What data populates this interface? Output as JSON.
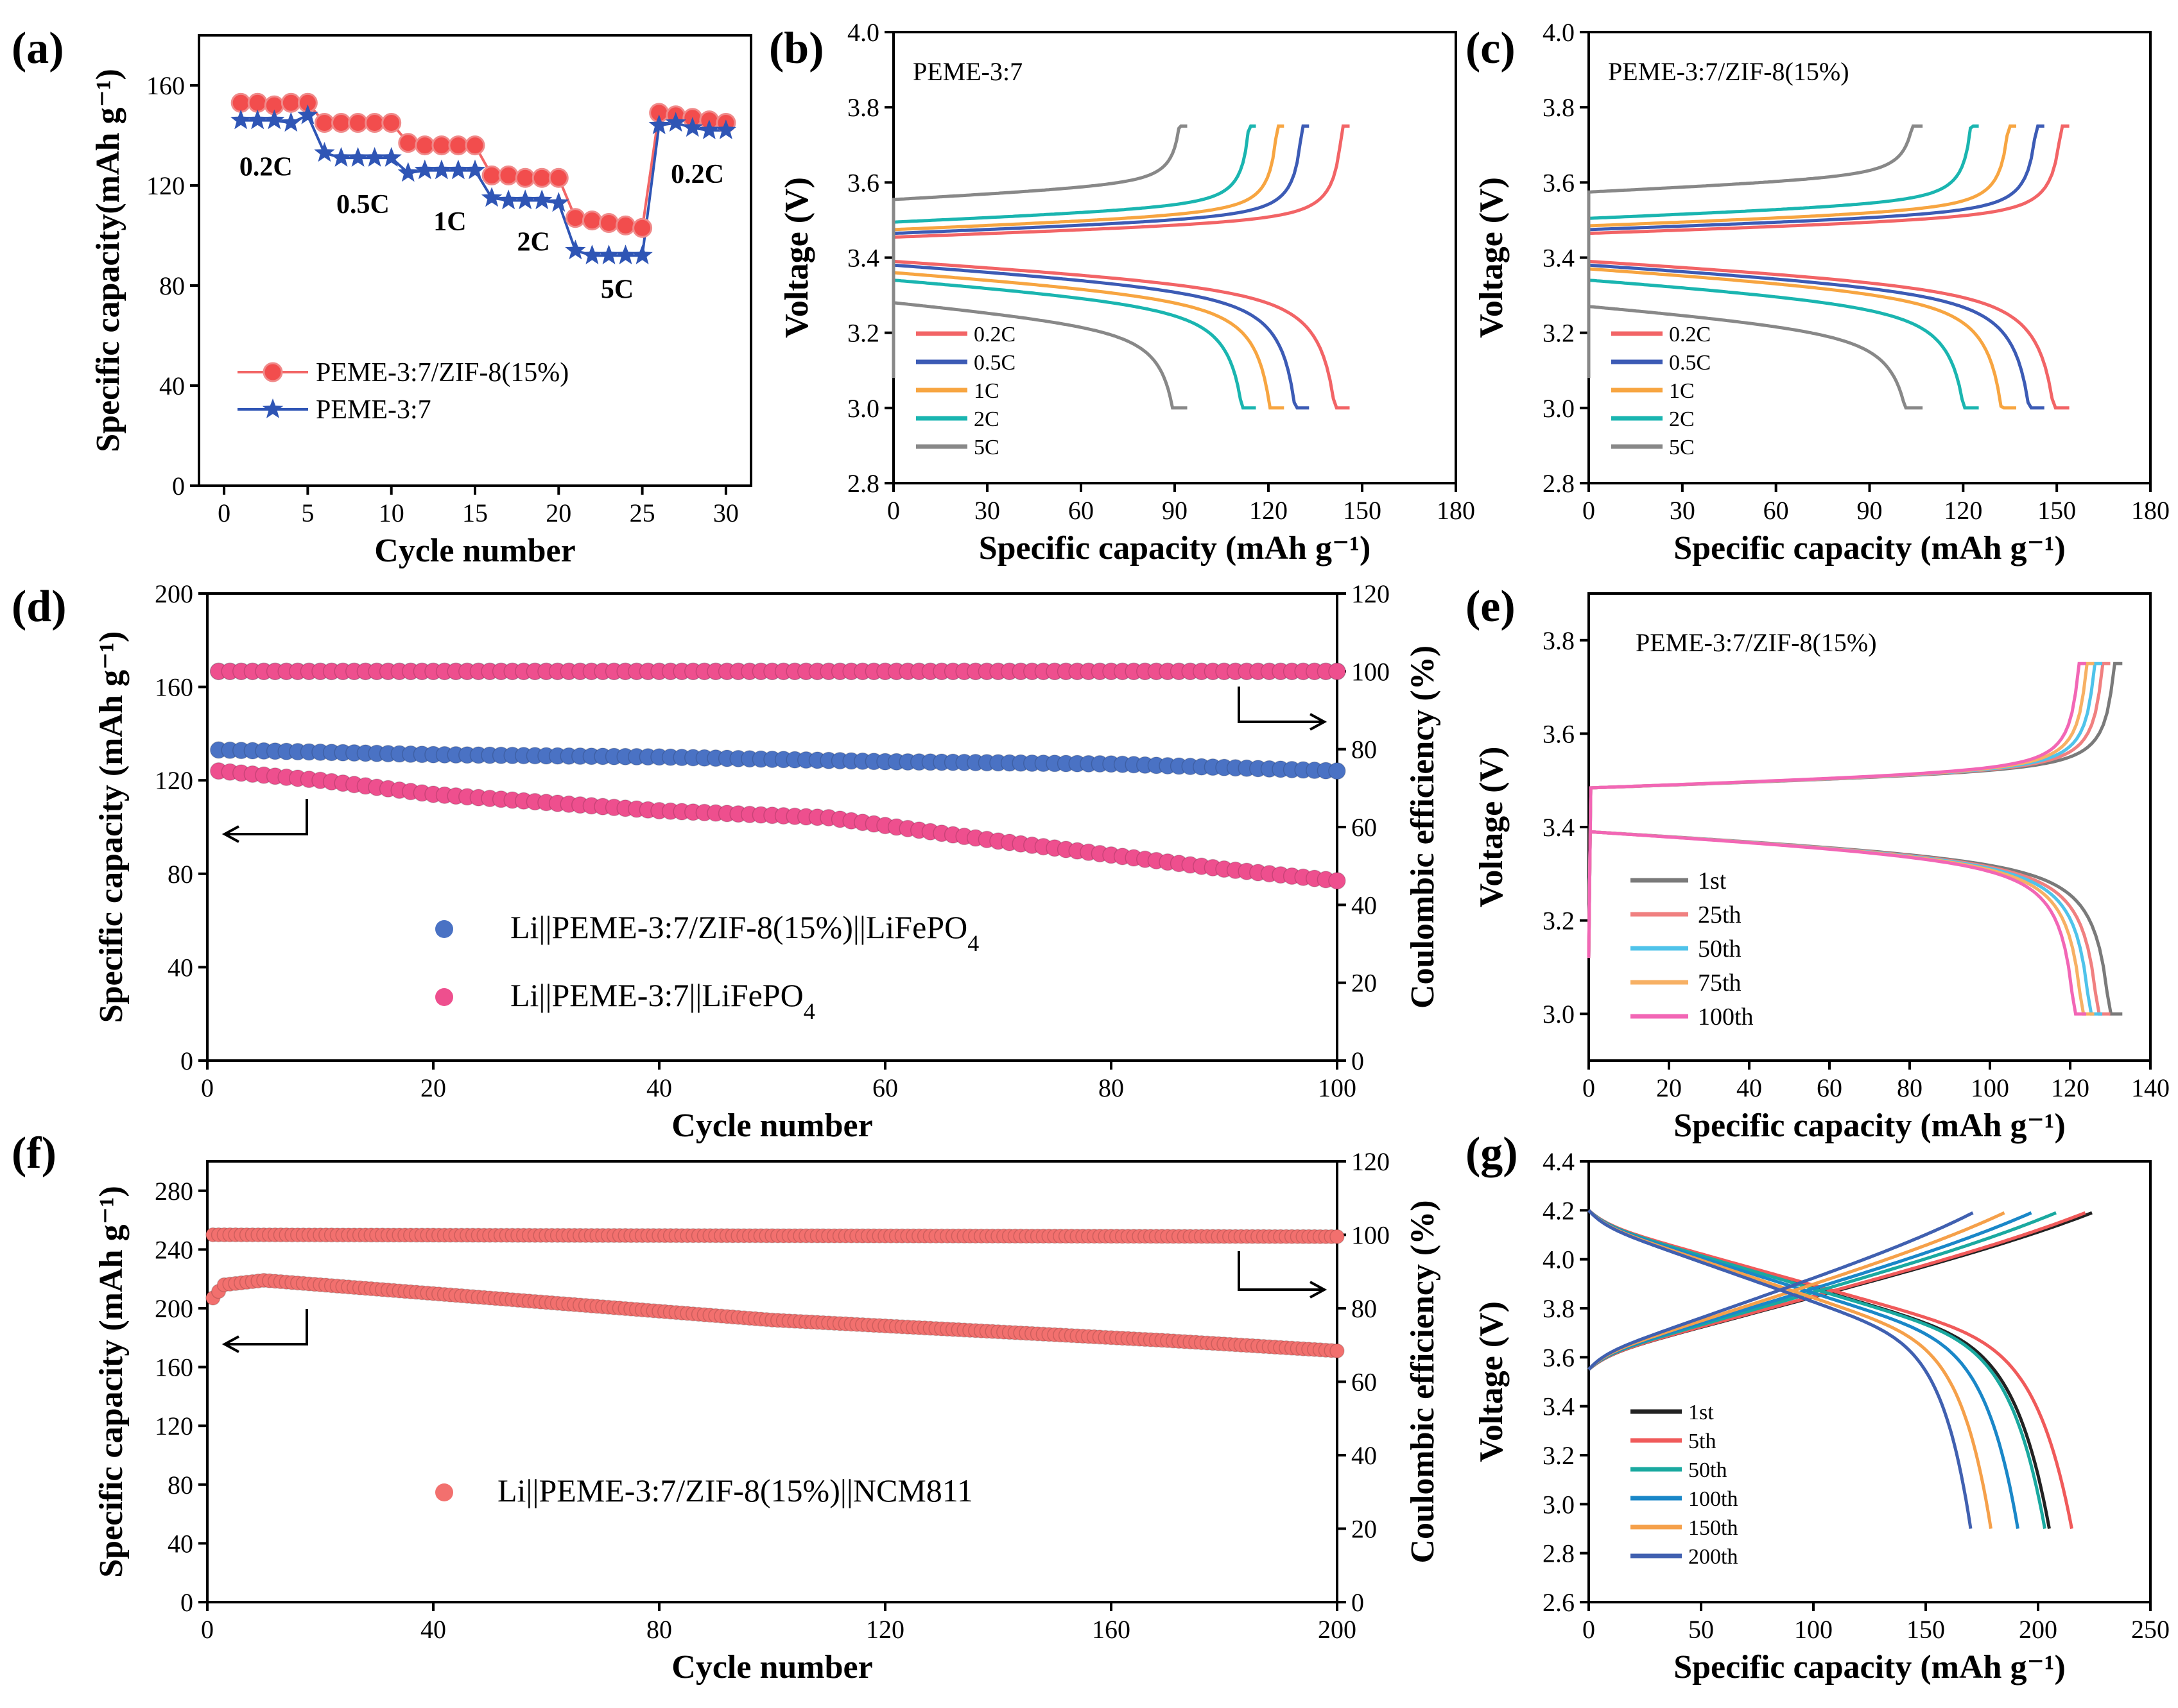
{
  "figure": {
    "panel_labels": [
      "(a)",
      "(b)",
      "(c)",
      "(d)",
      "(e)",
      "(f)",
      "(g)"
    ]
  },
  "chart_data": [
    {
      "id": "a",
      "type": "scatter",
      "xlabel": "Cycle number",
      "ylabel": "Specific capacity(mAh g⁻¹)",
      "xlim": [
        -1.5,
        31.5
      ],
      "ylim": [
        0,
        180
      ],
      "xticks": [
        0,
        5,
        10,
        15,
        20,
        25,
        30
      ],
      "yticks": [
        0,
        40,
        80,
        120,
        160
      ],
      "series": [
        {
          "name": "PEME-3:7/ZIF-8(15%)",
          "color": "#f26666",
          "marker": "circle",
          "x": [
            1,
            2,
            3,
            4,
            5,
            6,
            7,
            8,
            9,
            10,
            11,
            12,
            13,
            14,
            15,
            16,
            17,
            18,
            19,
            20,
            21,
            22,
            23,
            24,
            25,
            26,
            27,
            28,
            29,
            30
          ],
          "values": [
            153,
            153,
            152,
            153,
            153,
            145,
            145,
            145,
            145,
            145,
            137,
            136,
            136,
            136,
            136,
            124,
            124,
            123,
            123,
            123,
            107,
            106,
            105,
            104,
            103,
            149,
            148,
            147,
            146,
            145
          ]
        },
        {
          "name": "PEME-3:7",
          "color": "#2f55b5",
          "marker": "star",
          "x": [
            1,
            2,
            3,
            4,
            5,
            6,
            7,
            8,
            9,
            10,
            11,
            12,
            13,
            14,
            15,
            16,
            17,
            18,
            19,
            20,
            21,
            22,
            23,
            24,
            25,
            26,
            27,
            28,
            29,
            30
          ],
          "values": [
            146,
            146,
            146,
            145,
            148,
            133,
            131,
            131,
            131,
            131,
            125,
            126,
            126,
            126,
            126,
            115,
            114,
            114,
            114,
            113,
            94,
            92,
            92,
            92,
            92,
            144,
            145,
            143,
            142,
            142
          ]
        }
      ],
      "annotations": [
        {
          "text": "0.2C",
          "x": 2.5,
          "y": 124
        },
        {
          "text": "0.5C",
          "x": 8.3,
          "y": 109
        },
        {
          "text": "1C",
          "x": 13.5,
          "y": 102
        },
        {
          "text": "2C",
          "x": 18.5,
          "y": 94
        },
        {
          "text": "5C",
          "x": 23.5,
          "y": 75
        },
        {
          "text": "0.2C",
          "x": 28.3,
          "y": 121
        }
      ]
    },
    {
      "id": "b",
      "type": "line",
      "title": "PEME-3:7",
      "xlabel": "Specific capacity (mAh g⁻¹)",
      "ylabel": "Voltage (V)",
      "xlim": [
        0,
        180
      ],
      "ylim": [
        2.8,
        4.0
      ],
      "xticks": [
        0,
        30,
        60,
        90,
        120,
        150,
        180
      ],
      "yticks": [
        2.8,
        3.0,
        3.2,
        3.4,
        3.6,
        3.8,
        4.0
      ],
      "series": [
        {
          "name": "0.2C",
          "color": "#f26466",
          "capacity": 146,
          "charge_plateau": 3.45,
          "discharge_plateau": 3.39
        },
        {
          "name": "0.5C",
          "color": "#3c5bb5",
          "capacity": 133,
          "charge_plateau": 3.46,
          "discharge_plateau": 3.38
        },
        {
          "name": "1C",
          "color": "#f7a541",
          "capacity": 125,
          "charge_plateau": 3.47,
          "discharge_plateau": 3.36
        },
        {
          "name": "2C",
          "color": "#1ab5b0",
          "capacity": 116,
          "charge_plateau": 3.49,
          "discharge_plateau": 3.34
        },
        {
          "name": "5C",
          "color": "#888888",
          "capacity": 94,
          "charge_plateau": 3.55,
          "discharge_plateau": 3.28
        }
      ]
    },
    {
      "id": "c",
      "type": "line",
      "title": "PEME-3:7/ZIF-8(15%)",
      "xlabel": "Specific capacity (mAh g⁻¹)",
      "ylabel": "Voltage (V)",
      "xlim": [
        0,
        180
      ],
      "ylim": [
        2.8,
        4.0
      ],
      "xticks": [
        0,
        30,
        60,
        90,
        120,
        150,
        180
      ],
      "yticks": [
        2.8,
        3.0,
        3.2,
        3.4,
        3.6,
        3.8,
        4.0
      ],
      "series": [
        {
          "name": "0.2C",
          "color": "#f26466",
          "capacity": 154,
          "charge_plateau": 3.46,
          "discharge_plateau": 3.39
        },
        {
          "name": "0.5C",
          "color": "#3c5bb5",
          "capacity": 146,
          "charge_plateau": 3.47,
          "discharge_plateau": 3.38
        },
        {
          "name": "1C",
          "color": "#f7a541",
          "capacity": 137,
          "charge_plateau": 3.48,
          "discharge_plateau": 3.37
        },
        {
          "name": "2C",
          "color": "#1ab5b0",
          "capacity": 125,
          "charge_plateau": 3.5,
          "discharge_plateau": 3.34
        },
        {
          "name": "5C",
          "color": "#888888",
          "capacity": 107,
          "charge_plateau": 3.57,
          "discharge_plateau": 3.27
        }
      ]
    },
    {
      "id": "d",
      "type": "scatter",
      "xlabel": "Cycle number",
      "ylabel": "Specific capacity (mAh g⁻¹)",
      "y2label": "Coulombic efficiency (%)",
      "xlim": [
        0,
        100
      ],
      "ylim": [
        0,
        200
      ],
      "y2lim": [
        0,
        120
      ],
      "xticks": [
        0,
        20,
        40,
        60,
        80,
        100
      ],
      "yticks": [
        0,
        40,
        80,
        120,
        160,
        200
      ],
      "y2ticks": [
        0,
        20,
        40,
        60,
        80,
        100,
        120
      ],
      "series": [
        {
          "name": "Li||PEME-3:7/ZIF-8(15%)||LiFePO4",
          "color": "#4a72c4",
          "cycles": 100,
          "capacity_points": [
            [
              1,
              133
            ],
            [
              20,
              131
            ],
            [
              40,
              130
            ],
            [
              60,
              128
            ],
            [
              80,
              127
            ],
            [
              100,
              124
            ]
          ],
          "ce_points": [
            [
              1,
              100
            ],
            [
              100,
              100
            ]
          ]
        },
        {
          "name": "Li||PEME-3:7||LiFePO4",
          "color": "#ee4f8e",
          "cycles": 100,
          "capacity_points": [
            [
              1,
              124
            ],
            [
              10,
              120
            ],
            [
              20,
              114
            ],
            [
              40,
              107
            ],
            [
              55,
              104
            ],
            [
              70,
              94
            ],
            [
              80,
              88
            ],
            [
              90,
              82
            ],
            [
              100,
              77
            ]
          ],
          "ce_points": [
            [
              1,
              100
            ],
            [
              100,
              100
            ]
          ]
        }
      ],
      "legend": [
        "Li||PEME-3:7/ZIF-8(15%)||LiFePO",
        "Li||PEME-3:7||LiFePO"
      ],
      "legend_subscript": "4"
    },
    {
      "id": "e",
      "type": "line",
      "title": "PEME-3:7/ZIF-8(15%)",
      "xlabel": "Specific capacity (mAh g⁻¹)",
      "ylabel": "Voltage (V)",
      "xlim": [
        0,
        140
      ],
      "ylim": [
        2.9,
        3.9
      ],
      "xticks": [
        0,
        20,
        40,
        60,
        80,
        100,
        120,
        140
      ],
      "yticks": [
        3.0,
        3.2,
        3.4,
        3.6,
        3.8
      ],
      "series": [
        {
          "name": "1st",
          "color": "#7a7a7a",
          "capacity": 133
        },
        {
          "name": "25th",
          "color": "#f08080",
          "capacity": 130
        },
        {
          "name": "50th",
          "color": "#4fc3ea",
          "capacity": 128
        },
        {
          "name": "75th",
          "color": "#f7b064",
          "capacity": 126
        },
        {
          "name": "100th",
          "color": "#f266b5",
          "capacity": 124
        }
      ]
    },
    {
      "id": "f",
      "type": "scatter",
      "xlabel": "Cycle number",
      "ylabel": "Specific capacity (mAh g⁻¹)",
      "y2label": "Coulombic efficiency (%)",
      "xlim": [
        0,
        200
      ],
      "ylim": [
        0,
        300
      ],
      "y2lim": [
        0,
        120
      ],
      "xticks": [
        0,
        40,
        80,
        120,
        160,
        200
      ],
      "yticks": [
        0,
        40,
        80,
        120,
        160,
        200,
        240,
        280
      ],
      "y2ticks": [
        0,
        20,
        40,
        60,
        80,
        100,
        120
      ],
      "series": [
        {
          "name": "Li||PEME-3:7/ZIF-8(15%)||NCM811",
          "color": "#f2706e",
          "cycles": 200,
          "capacity_points": [
            [
              1,
              207
            ],
            [
              3,
              216
            ],
            [
              10,
              219
            ],
            [
              30,
              213
            ],
            [
              60,
              204
            ],
            [
              100,
              192
            ],
            [
              140,
              184
            ],
            [
              170,
              178
            ],
            [
              200,
              171
            ]
          ],
          "ce_points": [
            [
              1,
              100
            ],
            [
              200,
              99.5
            ]
          ]
        }
      ],
      "legend": [
        "Li||PEME-3:7/ZIF-8(15%)||NCM811"
      ]
    },
    {
      "id": "g",
      "type": "line",
      "xlabel": "Specific capacity (mAh g⁻¹)",
      "ylabel": "Voltage (V)",
      "xlim": [
        0,
        250
      ],
      "ylim": [
        2.6,
        4.4
      ],
      "xticks": [
        0,
        50,
        100,
        150,
        200,
        250
      ],
      "yticks": [
        2.6,
        2.8,
        3.0,
        3.2,
        3.4,
        3.6,
        3.8,
        4.0,
        4.2,
        4.4
      ],
      "series": [
        {
          "name": "1st",
          "color": "#222222",
          "capacity": 205,
          "charge_capacity": 224
        },
        {
          "name": "5th",
          "color": "#f05a5a",
          "capacity": 215,
          "charge_capacity": 221
        },
        {
          "name": "50th",
          "color": "#1aa9a0",
          "capacity": 203,
          "charge_capacity": 208
        },
        {
          "name": "100th",
          "color": "#1a87c8",
          "capacity": 191,
          "charge_capacity": 197
        },
        {
          "name": "150th",
          "color": "#f5a04a",
          "capacity": 179,
          "charge_capacity": 185
        },
        {
          "name": "200th",
          "color": "#4060b0",
          "capacity": 170,
          "charge_capacity": 171
        }
      ]
    }
  ]
}
